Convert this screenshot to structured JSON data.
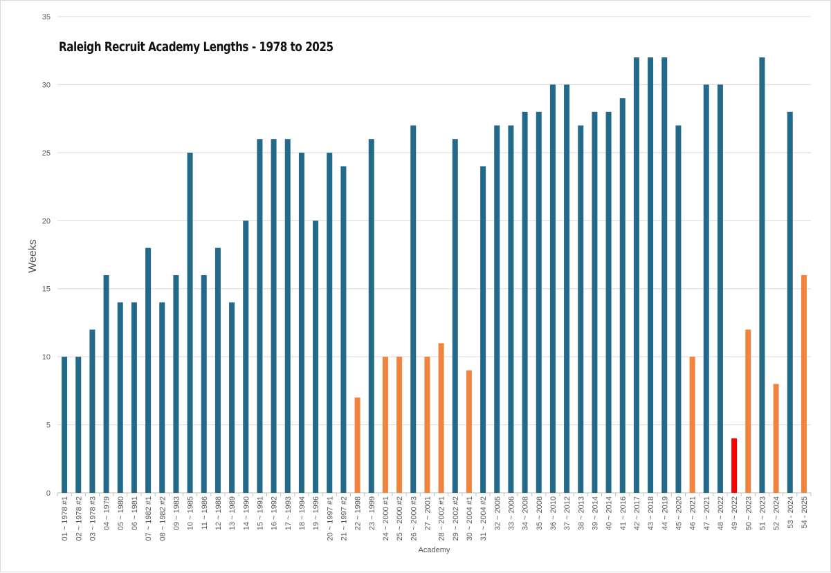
{
  "chart_data": {
    "type": "bar",
    "title": "Raleigh Recruit Academy Lengths - 1978 to 2025",
    "xlabel": "Academy",
    "ylabel": "Weeks",
    "ylim": [
      0,
      35
    ],
    "yticks": [
      0,
      5,
      10,
      15,
      20,
      25,
      30,
      35
    ],
    "grid": true,
    "legend": "none",
    "colors": {
      "standard": "#22698a",
      "short": "#f0843f",
      "shortest": "#ff0000",
      "gridline": "#d9d9d9",
      "axis": "#bfbfbf"
    },
    "categories": [
      "01 ~ 1978 #1",
      "02 ~ 1978 #2",
      "03 ~ 1978 #3",
      "04 ~ 1979",
      "05 ~ 1980",
      "06 ~ 1981",
      "07 ~ 1982 #1",
      "08 ~ 1982 #2",
      "09 ~ 1983",
      "10 ~ 1985",
      "11 ~ 1986",
      "12 ~ 1988",
      "13 ~ 1989",
      "14 ~ 1990",
      "15 ~ 1991",
      "16 ~ 1992",
      "17 ~ 1993",
      "18 ~ 1994",
      "19 ~ 1996",
      "20 ~ 1997 #1",
      "21 ~ 1997 #2",
      "22 ~ 1998",
      "23 ~ 1999",
      "24 ~ 2000 #1",
      "25 ~ 2000 #2",
      "26 ~ 2000 #3",
      "27 ~ 2001",
      "28 ~ 2002 #1",
      "29 ~ 2002 #2",
      "30 ~ 2004 #1",
      "31 ~ 2004 #2",
      "32 ~ 2005",
      "33 ~ 2006",
      "34 ~ 2008",
      "35 ~ 2008",
      "36 ~ 2010",
      "37 ~ 2012",
      "38 ~ 2013",
      "39 ~ 2014",
      "40 ~ 2014",
      "41 ~ 2016",
      "42 ~ 2017",
      "43 ~ 2018",
      "44 ~ 2019",
      "45 ~ 2020",
      "46 ~ 2021",
      "47 ~ 2021",
      "48 ~ 2022",
      "49 ~ 2022",
      "50 ~ 2023",
      "51 ~ 2023",
      "52 ~ 2024",
      "53 - 2024",
      "54 - 2025"
    ],
    "values": [
      10,
      10,
      12,
      16,
      14,
      14,
      18,
      14,
      16,
      25,
      16,
      18,
      14,
      20,
      26,
      26,
      26,
      25,
      20,
      25,
      24,
      7,
      26,
      10,
      10,
      27,
      10,
      11,
      26,
      9,
      24,
      27,
      27,
      28,
      28,
      30,
      30,
      27,
      28,
      28,
      29,
      32,
      32,
      32,
      27,
      10,
      30,
      30,
      4,
      12,
      32,
      8,
      28,
      16
    ],
    "bar_colors": [
      "standard",
      "standard",
      "standard",
      "standard",
      "standard",
      "standard",
      "standard",
      "standard",
      "standard",
      "standard",
      "standard",
      "standard",
      "standard",
      "standard",
      "standard",
      "standard",
      "standard",
      "standard",
      "standard",
      "standard",
      "standard",
      "short",
      "standard",
      "short",
      "short",
      "standard",
      "short",
      "short",
      "standard",
      "short",
      "standard",
      "standard",
      "standard",
      "standard",
      "standard",
      "standard",
      "standard",
      "standard",
      "standard",
      "standard",
      "standard",
      "standard",
      "standard",
      "standard",
      "standard",
      "short",
      "standard",
      "standard",
      "shortest",
      "short",
      "standard",
      "short",
      "standard",
      "short"
    ]
  }
}
